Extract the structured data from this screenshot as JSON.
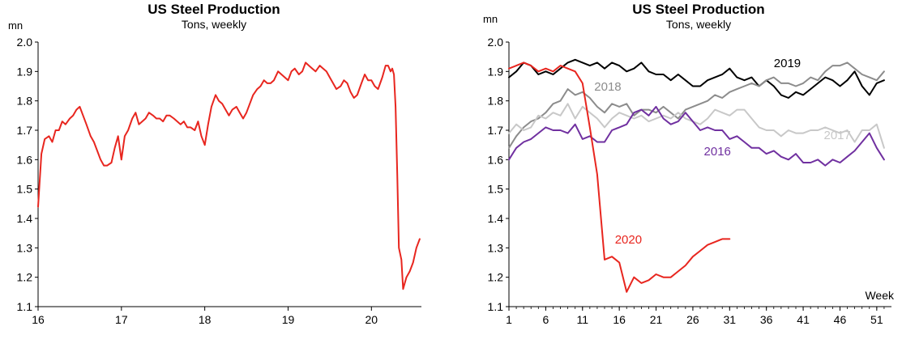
{
  "colors": {
    "red": "#e8261f",
    "black": "#000000",
    "darkgray": "#8c8c8c",
    "lightgray": "#c8c8c8",
    "purple": "#7030a0"
  },
  "chart_data": [
    {
      "type": "line",
      "title": "US Steel Production",
      "subtitle": "Tons, weekly",
      "ylabel_unit": "mn",
      "xlabel": "",
      "ylim": [
        1.1,
        2.0
      ],
      "yticks": [
        "1.1",
        "1.2",
        "1.3",
        "1.4",
        "1.5",
        "1.6",
        "1.7",
        "1.8",
        "1.9",
        "2.0"
      ],
      "xlim": [
        16,
        20.6
      ],
      "xticks": [
        "16",
        "17",
        "18",
        "19",
        "20"
      ],
      "grid": false,
      "series": [
        {
          "name": "",
          "color": "red",
          "x": [
            16.0,
            16.04,
            16.08,
            16.13,
            16.17,
            16.21,
            16.25,
            16.29,
            16.33,
            16.38,
            16.42,
            16.46,
            16.5,
            16.54,
            16.58,
            16.63,
            16.67,
            16.71,
            16.75,
            16.79,
            16.83,
            16.88,
            16.92,
            16.96,
            17.0,
            17.04,
            17.08,
            17.13,
            17.17,
            17.21,
            17.25,
            17.29,
            17.33,
            17.38,
            17.42,
            17.46,
            17.5,
            17.54,
            17.58,
            17.63,
            17.67,
            17.71,
            17.75,
            17.79,
            17.83,
            17.88,
            17.92,
            17.96,
            18.0,
            18.04,
            18.08,
            18.13,
            18.17,
            18.21,
            18.25,
            18.29,
            18.33,
            18.38,
            18.42,
            18.46,
            18.5,
            18.54,
            18.58,
            18.63,
            18.67,
            18.71,
            18.75,
            18.79,
            18.83,
            18.88,
            18.92,
            18.96,
            19.0,
            19.04,
            19.08,
            19.13,
            19.17,
            19.21,
            19.25,
            19.29,
            19.33,
            19.38,
            19.42,
            19.46,
            19.5,
            19.54,
            19.58,
            19.63,
            19.67,
            19.71,
            19.75,
            19.79,
            19.83,
            19.88,
            19.92,
            19.96,
            20.0,
            20.04,
            20.08,
            20.13,
            20.17,
            20.2,
            20.23,
            20.25,
            20.27,
            20.29,
            20.31,
            20.33,
            20.36,
            20.38,
            20.42,
            20.46,
            20.5,
            20.54,
            20.58
          ],
          "values": [
            1.44,
            1.62,
            1.67,
            1.68,
            1.66,
            1.7,
            1.7,
            1.73,
            1.72,
            1.74,
            1.75,
            1.77,
            1.78,
            1.75,
            1.72,
            1.68,
            1.66,
            1.63,
            1.6,
            1.58,
            1.58,
            1.59,
            1.64,
            1.68,
            1.6,
            1.68,
            1.7,
            1.74,
            1.76,
            1.72,
            1.73,
            1.74,
            1.76,
            1.75,
            1.74,
            1.74,
            1.73,
            1.75,
            1.75,
            1.74,
            1.73,
            1.72,
            1.73,
            1.71,
            1.71,
            1.7,
            1.73,
            1.68,
            1.65,
            1.72,
            1.78,
            1.82,
            1.8,
            1.79,
            1.77,
            1.75,
            1.77,
            1.78,
            1.76,
            1.74,
            1.76,
            1.79,
            1.82,
            1.84,
            1.85,
            1.87,
            1.86,
            1.86,
            1.87,
            1.9,
            1.89,
            1.88,
            1.87,
            1.9,
            1.91,
            1.89,
            1.9,
            1.93,
            1.92,
            1.91,
            1.9,
            1.92,
            1.91,
            1.9,
            1.88,
            1.86,
            1.84,
            1.85,
            1.87,
            1.86,
            1.83,
            1.81,
            1.82,
            1.86,
            1.89,
            1.87,
            1.87,
            1.85,
            1.84,
            1.88,
            1.92,
            1.92,
            1.9,
            1.91,
            1.89,
            1.78,
            1.55,
            1.3,
            1.26,
            1.16,
            1.2,
            1.22,
            1.25,
            1.3,
            1.33
          ]
        }
      ]
    },
    {
      "type": "line",
      "title": "US Steel Production",
      "subtitle": "Tons, weekly",
      "ylabel_unit": "mn",
      "xlabel": "Week",
      "ylim": [
        1.1,
        2.0
      ],
      "yticks": [
        "1.1",
        "1.2",
        "1.3",
        "1.4",
        "1.5",
        "1.6",
        "1.7",
        "1.8",
        "1.9",
        "2.0"
      ],
      "xlim": [
        1,
        53
      ],
      "xticks": [
        "1",
        "6",
        "11",
        "16",
        "21",
        "26",
        "31",
        "36",
        "41",
        "46",
        "51"
      ],
      "grid": false,
      "series": [
        {
          "name": "2019",
          "color": "black",
          "x": [
            1,
            2,
            3,
            4,
            5,
            6,
            7,
            8,
            9,
            10,
            11,
            12,
            13,
            14,
            15,
            16,
            17,
            18,
            19,
            20,
            21,
            22,
            23,
            24,
            25,
            26,
            27,
            28,
            29,
            30,
            31,
            32,
            33,
            34,
            35,
            36,
            37,
            38,
            39,
            40,
            41,
            42,
            43,
            44,
            45,
            46,
            47,
            48,
            49,
            50,
            51,
            52
          ],
          "values": [
            1.88,
            1.9,
            1.93,
            1.92,
            1.89,
            1.9,
            1.89,
            1.91,
            1.93,
            1.94,
            1.93,
            1.92,
            1.93,
            1.91,
            1.93,
            1.92,
            1.9,
            1.91,
            1.93,
            1.9,
            1.89,
            1.89,
            1.87,
            1.89,
            1.87,
            1.85,
            1.85,
            1.87,
            1.88,
            1.89,
            1.91,
            1.88,
            1.87,
            1.88,
            1.85,
            1.87,
            1.85,
            1.82,
            1.81,
            1.83,
            1.82,
            1.84,
            1.86,
            1.88,
            1.87,
            1.85,
            1.87,
            1.9,
            1.85,
            1.82,
            1.86,
            1.87
          ]
        },
        {
          "name": "2018",
          "color": "darkgray",
          "x": [
            1,
            2,
            3,
            4,
            5,
            6,
            7,
            8,
            9,
            10,
            11,
            12,
            13,
            14,
            15,
            16,
            17,
            18,
            19,
            20,
            21,
            22,
            23,
            24,
            25,
            26,
            27,
            28,
            29,
            30,
            31,
            32,
            33,
            34,
            35,
            36,
            37,
            38,
            39,
            40,
            41,
            42,
            43,
            44,
            45,
            46,
            47,
            48,
            49,
            50,
            51,
            52
          ],
          "values": [
            1.64,
            1.68,
            1.71,
            1.73,
            1.74,
            1.76,
            1.79,
            1.8,
            1.84,
            1.82,
            1.83,
            1.81,
            1.78,
            1.76,
            1.79,
            1.78,
            1.79,
            1.75,
            1.77,
            1.77,
            1.76,
            1.78,
            1.76,
            1.74,
            1.77,
            1.78,
            1.79,
            1.8,
            1.82,
            1.81,
            1.83,
            1.84,
            1.85,
            1.86,
            1.85,
            1.87,
            1.88,
            1.86,
            1.86,
            1.85,
            1.86,
            1.88,
            1.87,
            1.9,
            1.92,
            1.92,
            1.93,
            1.91,
            1.89,
            1.88,
            1.87,
            1.9
          ]
        },
        {
          "name": "2017",
          "color": "lightgray",
          "x": [
            1,
            2,
            3,
            4,
            5,
            6,
            7,
            8,
            9,
            10,
            11,
            12,
            13,
            14,
            15,
            16,
            17,
            18,
            19,
            20,
            21,
            22,
            23,
            24,
            25,
            26,
            27,
            28,
            29,
            30,
            31,
            32,
            33,
            34,
            35,
            36,
            37,
            38,
            39,
            40,
            41,
            42,
            43,
            44,
            45,
            46,
            47,
            48,
            49,
            50,
            51,
            52
          ],
          "values": [
            1.69,
            1.72,
            1.7,
            1.71,
            1.75,
            1.74,
            1.76,
            1.75,
            1.79,
            1.74,
            1.78,
            1.76,
            1.74,
            1.71,
            1.74,
            1.76,
            1.75,
            1.74,
            1.75,
            1.73,
            1.74,
            1.75,
            1.74,
            1.76,
            1.74,
            1.73,
            1.72,
            1.74,
            1.77,
            1.76,
            1.75,
            1.77,
            1.77,
            1.74,
            1.71,
            1.7,
            1.7,
            1.68,
            1.7,
            1.69,
            1.69,
            1.7,
            1.7,
            1.71,
            1.7,
            1.69,
            1.7,
            1.66,
            1.7,
            1.7,
            1.72,
            1.64
          ]
        },
        {
          "name": "2016",
          "color": "purple",
          "x": [
            1,
            2,
            3,
            4,
            5,
            6,
            7,
            8,
            9,
            10,
            11,
            12,
            13,
            14,
            15,
            16,
            17,
            18,
            19,
            20,
            21,
            22,
            23,
            24,
            25,
            26,
            27,
            28,
            29,
            30,
            31,
            32,
            33,
            34,
            35,
            36,
            37,
            38,
            39,
            40,
            41,
            42,
            43,
            44,
            45,
            46,
            47,
            48,
            49,
            50,
            51,
            52
          ],
          "values": [
            1.6,
            1.64,
            1.66,
            1.67,
            1.69,
            1.71,
            1.7,
            1.7,
            1.69,
            1.72,
            1.67,
            1.68,
            1.66,
            1.66,
            1.7,
            1.71,
            1.72,
            1.76,
            1.77,
            1.75,
            1.78,
            1.74,
            1.72,
            1.73,
            1.76,
            1.73,
            1.7,
            1.71,
            1.7,
            1.7,
            1.67,
            1.68,
            1.66,
            1.64,
            1.64,
            1.62,
            1.63,
            1.61,
            1.6,
            1.62,
            1.59,
            1.59,
            1.6,
            1.58,
            1.6,
            1.59,
            1.61,
            1.63,
            1.66,
            1.69,
            1.64,
            1.6
          ]
        },
        {
          "name": "2020",
          "color": "red",
          "x": [
            1,
            2,
            3,
            4,
            5,
            6,
            7,
            8,
            9,
            10,
            11,
            12,
            13,
            14,
            15,
            16,
            17,
            18,
            19,
            20,
            21,
            22,
            23,
            24,
            25,
            26,
            27,
            28,
            29,
            30,
            31
          ],
          "values": [
            1.91,
            1.92,
            1.93,
            1.92,
            1.9,
            1.91,
            1.9,
            1.92,
            1.91,
            1.9,
            1.86,
            1.71,
            1.55,
            1.26,
            1.27,
            1.25,
            1.15,
            1.2,
            1.18,
            1.19,
            1.21,
            1.2,
            1.2,
            1.22,
            1.24,
            1.27,
            1.29,
            1.31,
            1.32,
            1.33,
            1.33
          ]
        }
      ],
      "series_labels": [
        {
          "series": "2019",
          "x": 37,
          "y": 1.915
        },
        {
          "series": "2018",
          "x": 12.6,
          "y": 1.835
        },
        {
          "series": "2017",
          "x": 43.8,
          "y": 1.67
        },
        {
          "series": "2016",
          "x": 27.5,
          "y": 1.615
        },
        {
          "series": "2020",
          "x": 15.4,
          "y": 1.315
        }
      ]
    }
  ]
}
